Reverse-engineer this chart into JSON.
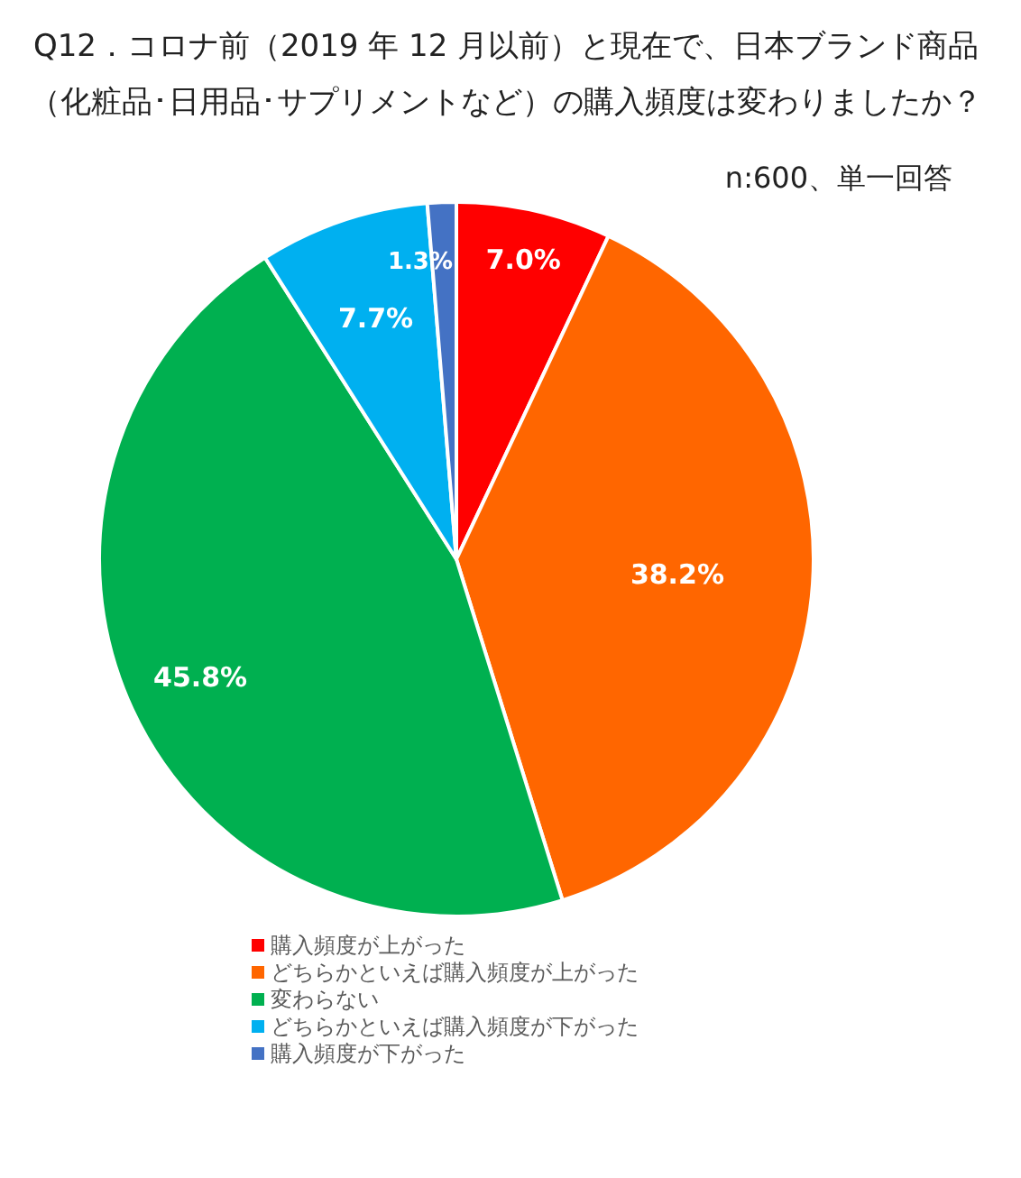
{
  "chart_data": {
    "type": "pie",
    "title": "Q12．コロナ前（2019 年 12 月以前）と現在で、日本ブランド商品（化粧品･日用品･サプリメントなど）の購入頻度は変わりましたか？",
    "subtitle": "n:600、単一回答",
    "categories": [
      "購入頻度が上がった",
      "どちらかといえば購入頻度が上がった",
      "変わらない",
      "どちらかといえば購入頻度が下がった",
      "購入頻度が下がった"
    ],
    "values": [
      7.0,
      38.2,
      45.8,
      7.7,
      1.3
    ],
    "colors": [
      "#ff0000",
      "#ff6600",
      "#00b050",
      "#00b0f0",
      "#4472c4"
    ],
    "value_labels": [
      "7.0%",
      "38.2%",
      "45.8%",
      "7.7%",
      "1.3%"
    ],
    "legend": "bottom"
  }
}
